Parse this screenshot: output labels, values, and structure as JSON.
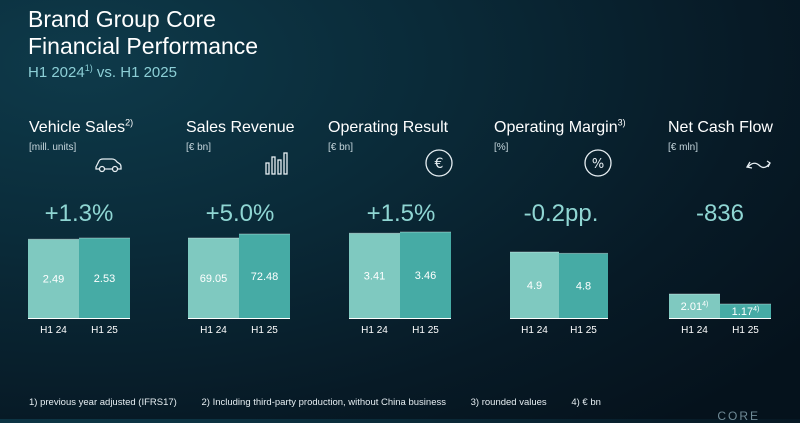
{
  "header": {
    "title": "Brand Group Core",
    "subtitle": "Financial Performance",
    "period_a": "H1 2024",
    "period_note": "1)",
    "period_b": "vs. H1 2025"
  },
  "colors": {
    "bar_h1_24": "#7fc9c0",
    "bar_h1_25": "#46aba5",
    "accent": "#8fd6d3"
  },
  "metrics": [
    {
      "label": "Vehicle Sales",
      "note": "2)",
      "unit": "[mill. units]",
      "change": "+1.3%",
      "icon": "car-icon"
    },
    {
      "label": "Sales Revenue",
      "note": "",
      "unit": "[€ bn]",
      "change": "+5.0%",
      "icon": "bar-chart-icon"
    },
    {
      "label": "Operating Result",
      "note": "",
      "unit": "[€ bn]",
      "change": "+1.5%",
      "icon": "euro-icon"
    },
    {
      "label": "Operating Margin",
      "note": "3)",
      "unit": "[%]",
      "change": "-0.2pp.",
      "icon": "percent-icon"
    },
    {
      "label": "Net Cash Flow",
      "note": "",
      "unit": "[€ mln]",
      "change": "-836",
      "icon": "cash-flow-arrows-icon"
    }
  ],
  "chart_data": [
    {
      "type": "bar",
      "categories": [
        "H1 24",
        "H1 25"
      ],
      "values": [
        2.49,
        2.53
      ],
      "labels": [
        "2.49",
        "2.53"
      ],
      "notes": [
        "",
        ""
      ]
    },
    {
      "type": "bar",
      "categories": [
        "H1 24",
        "H1 25"
      ],
      "values": [
        69.05,
        72.48
      ],
      "labels": [
        "69.05",
        "72.48"
      ],
      "notes": [
        "",
        ""
      ]
    },
    {
      "type": "bar",
      "categories": [
        "H1 24",
        "H1 25"
      ],
      "values": [
        3.41,
        3.46
      ],
      "labels": [
        "3.41",
        "3.46"
      ],
      "notes": [
        "",
        ""
      ]
    },
    {
      "type": "bar",
      "categories": [
        "H1 24",
        "H1 25"
      ],
      "values": [
        4.9,
        4.8
      ],
      "labels": [
        "4.9",
        "4.8"
      ],
      "notes": [
        "",
        ""
      ]
    },
    {
      "type": "bar",
      "categories": [
        "H1 24",
        "H1 25"
      ],
      "values": [
        2.01,
        1.17
      ],
      "labels": [
        "2.01",
        "1.17"
      ],
      "notes": [
        "4)",
        "4)"
      ]
    }
  ],
  "footnotes": [
    "1) previous year adjusted (IFRS17)",
    "2) Including third-party production, without China business",
    "3) rounded values",
    "4) € bn"
  ],
  "corner_text": "CORE"
}
